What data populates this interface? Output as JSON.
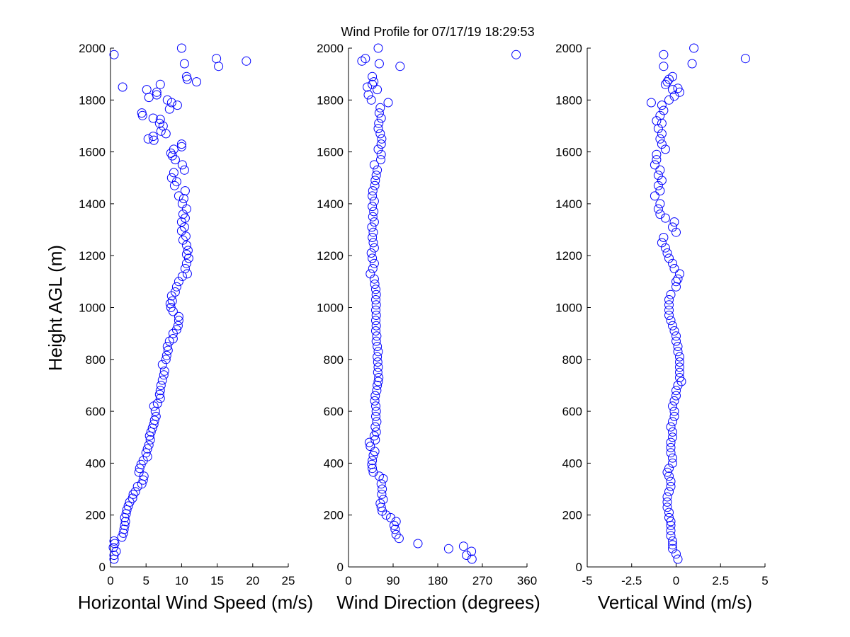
{
  "title": "Wind Profile for  07/17/19 18:29:53",
  "ylabel": "Height AGL (m)",
  "colors": {
    "marker": "#0000ff",
    "axis": "#000000",
    "background": "#ffffff"
  },
  "chart_data": [
    {
      "type": "scatter",
      "xlabel": "Horizontal Wind Speed (m/s)",
      "ylabel": "Height AGL (m)",
      "xlim": [
        0,
        25
      ],
      "ylim": [
        0,
        2000
      ],
      "xticks": [
        "0",
        "5",
        "10",
        "15",
        "20",
        "25"
      ],
      "yticks": [
        "0",
        "200",
        "400",
        "600",
        "800",
        "1000",
        "1200",
        "1400",
        "1600",
        "1800",
        "2000"
      ],
      "marker": "open-circle",
      "grid": false,
      "points": [
        [
          0.5,
          30
        ],
        [
          0.5,
          45
        ],
        [
          0.8,
          60
        ],
        [
          0.4,
          75
        ],
        [
          0.6,
          90
        ],
        [
          0.5,
          100
        ],
        [
          1.6,
          115
        ],
        [
          1.8,
          130
        ],
        [
          1.9,
          145
        ],
        [
          2.0,
          160
        ],
        [
          2.1,
          175
        ],
        [
          2.0,
          190
        ],
        [
          2.2,
          205
        ],
        [
          2.3,
          220
        ],
        [
          2.5,
          235
        ],
        [
          2.7,
          250
        ],
        [
          3.1,
          265
        ],
        [
          3.2,
          280
        ],
        [
          3.5,
          290
        ],
        [
          3.8,
          310
        ],
        [
          4.4,
          320
        ],
        [
          4.6,
          335
        ],
        [
          4.7,
          350
        ],
        [
          4.0,
          365
        ],
        [
          4.1,
          380
        ],
        [
          4.3,
          395
        ],
        [
          4.6,
          410
        ],
        [
          5.2,
          425
        ],
        [
          5.0,
          440
        ],
        [
          5.2,
          455
        ],
        [
          5.4,
          470
        ],
        [
          5.6,
          490
        ],
        [
          5.5,
          505
        ],
        [
          5.7,
          520
        ],
        [
          5.9,
          535
        ],
        [
          6.1,
          550
        ],
        [
          6.2,
          565
        ],
        [
          6.4,
          580
        ],
        [
          6.3,
          600
        ],
        [
          6.1,
          620
        ],
        [
          6.6,
          630
        ],
        [
          7.0,
          650
        ],
        [
          6.9,
          665
        ],
        [
          7.0,
          680
        ],
        [
          7.1,
          700
        ],
        [
          7.3,
          720
        ],
        [
          7.5,
          740
        ],
        [
          7.6,
          755
        ],
        [
          7.3,
          780
        ],
        [
          7.8,
          800
        ],
        [
          7.9,
          815
        ],
        [
          8.1,
          835
        ],
        [
          8.0,
          850
        ],
        [
          8.3,
          870
        ],
        [
          8.8,
          880
        ],
        [
          8.8,
          900
        ],
        [
          9.3,
          915
        ],
        [
          9.5,
          930
        ],
        [
          9.6,
          950
        ],
        [
          9.6,
          965
        ],
        [
          8.8,
          985
        ],
        [
          8.5,
          1000
        ],
        [
          8.4,
          1015
        ],
        [
          8.7,
          1025
        ],
        [
          8.6,
          1045
        ],
        [
          9.1,
          1060
        ],
        [
          9.3,
          1080
        ],
        [
          9.6,
          1100
        ],
        [
          10.1,
          1120
        ],
        [
          10.8,
          1130
        ],
        [
          10.5,
          1150
        ],
        [
          10.7,
          1170
        ],
        [
          11.0,
          1190
        ],
        [
          10.7,
          1205
        ],
        [
          10.9,
          1220
        ],
        [
          10.7,
          1240
        ],
        [
          10.2,
          1260
        ],
        [
          10.6,
          1275
        ],
        [
          10.0,
          1295
        ],
        [
          10.4,
          1310
        ],
        [
          10.0,
          1330
        ],
        [
          10.5,
          1345
        ],
        [
          10.2,
          1360
        ],
        [
          10.7,
          1380
        ],
        [
          10.1,
          1400
        ],
        [
          10.3,
          1420
        ],
        [
          9.6,
          1430
        ],
        [
          10.5,
          1450
        ],
        [
          9.0,
          1470
        ],
        [
          9.3,
          1485
        ],
        [
          8.6,
          1500
        ],
        [
          8.9,
          1520
        ],
        [
          10.4,
          1530
        ],
        [
          10.1,
          1550
        ],
        [
          9.1,
          1570
        ],
        [
          8.7,
          1585
        ],
        [
          8.5,
          1595
        ],
        [
          8.9,
          1610
        ],
        [
          10.0,
          1620
        ],
        [
          10.0,
          1630
        ],
        [
          6.1,
          1645
        ],
        [
          5.3,
          1650
        ],
        [
          6.0,
          1660
        ],
        [
          7.8,
          1670
        ],
        [
          7.1,
          1680
        ],
        [
          7.4,
          1700
        ],
        [
          6.9,
          1710
        ],
        [
          7.0,
          1725
        ],
        [
          6.0,
          1730
        ],
        [
          4.5,
          1740
        ],
        [
          4.4,
          1750
        ],
        [
          8.3,
          1765
        ],
        [
          9.4,
          1780
        ],
        [
          8.6,
          1790
        ],
        [
          8.0,
          1800
        ],
        [
          5.4,
          1810
        ],
        [
          6.5,
          1820
        ],
        [
          6.5,
          1830
        ],
        [
          5.1,
          1840
        ],
        [
          1.7,
          1850
        ],
        [
          7.0,
          1860
        ],
        [
          12.1,
          1870
        ],
        [
          10.8,
          1880
        ],
        [
          10.7,
          1890
        ],
        [
          10.4,
          1940
        ],
        [
          15.2,
          1930
        ],
        [
          19.1,
          1950
        ],
        [
          14.9,
          1960
        ],
        [
          0.5,
          1975
        ],
        [
          10.0,
          2000
        ]
      ]
    },
    {
      "type": "scatter",
      "xlabel": "Wind Direction (degrees)",
      "xlim": [
        0,
        360
      ],
      "ylim": [
        0,
        2000
      ],
      "xticks": [
        "0",
        "90",
        "180",
        "270",
        "360"
      ],
      "yticks": [
        "0",
        "200",
        "400",
        "600",
        "800",
        "1000",
        "1200",
        "1400",
        "1600",
        "1800",
        "2000"
      ],
      "marker": "open-circle",
      "grid": false,
      "points": [
        [
          249,
          30
        ],
        [
          238,
          45
        ],
        [
          248,
          60
        ],
        [
          232,
          80
        ],
        [
          202,
          70
        ],
        [
          140,
          90
        ],
        [
          102,
          110
        ],
        [
          96,
          125
        ],
        [
          94,
          145
        ],
        [
          92,
          160
        ],
        [
          96,
          175
        ],
        [
          85,
          190
        ],
        [
          76,
          200
        ],
        [
          68,
          215
        ],
        [
          66,
          230
        ],
        [
          64,
          245
        ],
        [
          70,
          260
        ],
        [
          67,
          280
        ],
        [
          68,
          300
        ],
        [
          66,
          320
        ],
        [
          70,
          340
        ],
        [
          62,
          350
        ],
        [
          50,
          365
        ],
        [
          48,
          380
        ],
        [
          47,
          395
        ],
        [
          48,
          410
        ],
        [
          50,
          430
        ],
        [
          53,
          445
        ],
        [
          44,
          465
        ],
        [
          42,
          480
        ],
        [
          54,
          490
        ],
        [
          52,
          505
        ],
        [
          56,
          520
        ],
        [
          54,
          540
        ],
        [
          57,
          560
        ],
        [
          55,
          580
        ],
        [
          56,
          600
        ],
        [
          55,
          620
        ],
        [
          53,
          640
        ],
        [
          54,
          660
        ],
        [
          57,
          680
        ],
        [
          58,
          700
        ],
        [
          60,
          715
        ],
        [
          61,
          730
        ],
        [
          59,
          750
        ],
        [
          60,
          770
        ],
        [
          59,
          790
        ],
        [
          58,
          810
        ],
        [
          60,
          830
        ],
        [
          58,
          850
        ],
        [
          56,
          870
        ],
        [
          57,
          890
        ],
        [
          55,
          910
        ],
        [
          56,
          930
        ],
        [
          55,
          950
        ],
        [
          56,
          970
        ],
        [
          55,
          990
        ],
        [
          56,
          1010
        ],
        [
          55,
          1030
        ],
        [
          56,
          1050
        ],
        [
          55,
          1070
        ],
        [
          53,
          1090
        ],
        [
          52,
          1110
        ],
        [
          44,
          1130
        ],
        [
          49,
          1150
        ],
        [
          52,
          1170
        ],
        [
          48,
          1190
        ],
        [
          46,
          1210
        ],
        [
          52,
          1230
        ],
        [
          50,
          1250
        ],
        [
          48,
          1270
        ],
        [
          50,
          1290
        ],
        [
          47,
          1310
        ],
        [
          52,
          1330
        ],
        [
          49,
          1350
        ],
        [
          51,
          1370
        ],
        [
          48,
          1390
        ],
        [
          52,
          1410
        ],
        [
          48,
          1430
        ],
        [
          49,
          1450
        ],
        [
          53,
          1470
        ],
        [
          54,
          1490
        ],
        [
          56,
          1510
        ],
        [
          58,
          1530
        ],
        [
          52,
          1550
        ],
        [
          65,
          1570
        ],
        [
          66,
          1590
        ],
        [
          60,
          1610
        ],
        [
          66,
          1630
        ],
        [
          67,
          1650
        ],
        [
          64,
          1670
        ],
        [
          60,
          1690
        ],
        [
          61,
          1710
        ],
        [
          66,
          1730
        ],
        [
          62,
          1750
        ],
        [
          64,
          1770
        ],
        [
          80,
          1790
        ],
        [
          46,
          1800
        ],
        [
          40,
          1820
        ],
        [
          58,
          1840
        ],
        [
          38,
          1850
        ],
        [
          48,
          1860
        ],
        [
          51,
          1870
        ],
        [
          48,
          1890
        ],
        [
          104,
          1930
        ],
        [
          62,
          1940
        ],
        [
          27,
          1950
        ],
        [
          34,
          1960
        ],
        [
          338,
          1975
        ],
        [
          60,
          2000
        ]
      ]
    },
    {
      "type": "scatter",
      "xlabel": "Vertical Wind (m/s)",
      "xlim": [
        -5,
        5
      ],
      "ylim": [
        0,
        2000
      ],
      "xticks": [
        "-5",
        "-2.5",
        "0",
        "2.5",
        "5"
      ],
      "yticks": [
        "0",
        "200",
        "400",
        "600",
        "800",
        "1000",
        "1200",
        "1400",
        "1600",
        "1800",
        "2000"
      ],
      "marker": "open-circle",
      "grid": false,
      "points": [
        [
          0.1,
          30
        ],
        [
          0.0,
          50
        ],
        [
          -0.2,
          70
        ],
        [
          -0.2,
          85
        ],
        [
          -0.2,
          100
        ],
        [
          -0.3,
          120
        ],
        [
          -0.3,
          140
        ],
        [
          -0.3,
          160
        ],
        [
          -0.3,
          175
        ],
        [
          -0.4,
          190
        ],
        [
          -0.4,
          210
        ],
        [
          -0.5,
          230
        ],
        [
          -0.5,
          250
        ],
        [
          -0.5,
          270
        ],
        [
          -0.4,
          290
        ],
        [
          -0.3,
          310
        ],
        [
          -0.3,
          330
        ],
        [
          -0.4,
          350
        ],
        [
          -0.5,
          365
        ],
        [
          -0.4,
          380
        ],
        [
          -0.2,
          400
        ],
        [
          -0.2,
          420
        ],
        [
          -0.3,
          440
        ],
        [
          -0.3,
          460
        ],
        [
          -0.3,
          480
        ],
        [
          -0.2,
          500
        ],
        [
          -0.2,
          520
        ],
        [
          -0.3,
          540
        ],
        [
          -0.2,
          560
        ],
        [
          -0.1,
          580
        ],
        [
          -0.1,
          600
        ],
        [
          -0.2,
          620
        ],
        [
          -0.1,
          640
        ],
        [
          0.0,
          660
        ],
        [
          0.0,
          680
        ],
        [
          0.1,
          700
        ],
        [
          0.3,
          715
        ],
        [
          0.2,
          730
        ],
        [
          0.2,
          750
        ],
        [
          0.2,
          770
        ],
        [
          0.2,
          790
        ],
        [
          0.2,
          810
        ],
        [
          0.1,
          830
        ],
        [
          0.1,
          850
        ],
        [
          0.0,
          870
        ],
        [
          0.0,
          890
        ],
        [
          -0.1,
          910
        ],
        [
          -0.2,
          930
        ],
        [
          -0.3,
          950
        ],
        [
          -0.4,
          970
        ],
        [
          -0.4,
          990
        ],
        [
          -0.4,
          1010
        ],
        [
          -0.4,
          1030
        ],
        [
          -0.3,
          1050
        ],
        [
          0.0,
          1080
        ],
        [
          0.0,
          1100
        ],
        [
          0.1,
          1110
        ],
        [
          0.2,
          1130
        ],
        [
          -0.1,
          1150
        ],
        [
          -0.2,
          1170
        ],
        [
          -0.4,
          1190
        ],
        [
          -0.5,
          1210
        ],
        [
          -0.6,
          1230
        ],
        [
          -0.8,
          1250
        ],
        [
          -0.7,
          1270
        ],
        [
          0.0,
          1290
        ],
        [
          -0.2,
          1310
        ],
        [
          -0.1,
          1330
        ],
        [
          -0.6,
          1345
        ],
        [
          -0.9,
          1360
        ],
        [
          -1.0,
          1380
        ],
        [
          -0.9,
          1400
        ],
        [
          -1.2,
          1430
        ],
        [
          -0.9,
          1450
        ],
        [
          -1.0,
          1470
        ],
        [
          -0.8,
          1490
        ],
        [
          -1.0,
          1510
        ],
        [
          -0.9,
          1530
        ],
        [
          -1.2,
          1550
        ],
        [
          -1.1,
          1570
        ],
        [
          -1.1,
          1590
        ],
        [
          -0.6,
          1610
        ],
        [
          -0.8,
          1630
        ],
        [
          -0.9,
          1650
        ],
        [
          -0.8,
          1670
        ],
        [
          -1.0,
          1690
        ],
        [
          -0.8,
          1710
        ],
        [
          -1.1,
          1720
        ],
        [
          -0.9,
          1740
        ],
        [
          -0.7,
          1760
        ],
        [
          -0.8,
          1780
        ],
        [
          -1.4,
          1790
        ],
        [
          -0.4,
          1800
        ],
        [
          -0.1,
          1815
        ],
        [
          0.2,
          1830
        ],
        [
          -0.2,
          1840
        ],
        [
          -0.6,
          1860
        ],
        [
          -0.4,
          1880
        ],
        [
          -0.2,
          1890
        ],
        [
          -0.7,
          1930
        ],
        [
          0.9,
          1940
        ],
        [
          3.9,
          1960
        ],
        [
          -0.7,
          1975
        ],
        [
          1.0,
          2000
        ],
        [
          0.1,
          1845
        ],
        [
          -0.5,
          1870
        ]
      ]
    }
  ]
}
